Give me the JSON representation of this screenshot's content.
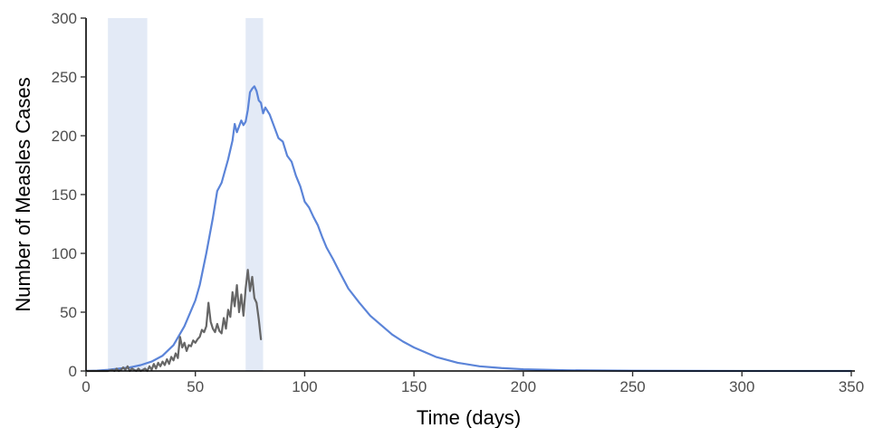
{
  "chart_data": {
    "type": "line",
    "title": "",
    "xlabel": "Time (days)",
    "ylabel": "Number of Measles Cases",
    "xlim": [
      0,
      350
    ],
    "ylim": [
      0,
      300
    ],
    "x_ticks": [
      0,
      50,
      100,
      150,
      200,
      250,
      300,
      350
    ],
    "y_ticks": [
      0,
      50,
      100,
      150,
      200,
      250,
      300
    ],
    "x_tick_labels": [
      "0",
      "50",
      "100",
      "150",
      "200",
      "250",
      "300",
      "350"
    ],
    "y_tick_labels": [
      "0",
      "50",
      "100",
      "150",
      "200",
      "250",
      "300"
    ],
    "grid": false,
    "legend": "none",
    "shaded_intervals": [
      {
        "x_start": 10,
        "x_end": 28,
        "color": "#e3eaf6"
      },
      {
        "x_start": 73,
        "x_end": 81,
        "color": "#e3eaf6"
      }
    ],
    "series": [
      {
        "color": "#5b84d8",
        "x": [
          0,
          5,
          10,
          15,
          20,
          25,
          30,
          35,
          40,
          45,
          50,
          52,
          55,
          58,
          60,
          62,
          65,
          67,
          68,
          69,
          70,
          71,
          72,
          73,
          74,
          75,
          76,
          77,
          78,
          79,
          80,
          81,
          82,
          84,
          86,
          88,
          90,
          92,
          94,
          96,
          98,
          100,
          102,
          104,
          106,
          108,
          110,
          113,
          116,
          120,
          125,
          130,
          135,
          140,
          145,
          150,
          160,
          170,
          180,
          190,
          200,
          220,
          250,
          300,
          350
        ],
        "y": [
          0,
          0.3,
          1,
          2,
          3,
          5,
          8,
          13,
          22,
          38,
          60,
          73,
          100,
          130,
          153,
          160,
          180,
          196,
          210,
          203,
          208,
          213,
          209,
          212,
          222,
          237,
          240,
          242,
          238,
          230,
          228,
          219,
          224,
          218,
          208,
          198,
          195,
          183,
          178,
          166,
          157,
          144,
          139,
          131,
          124,
          114,
          105,
          95,
          84,
          70,
          58,
          47,
          39,
          31,
          25,
          20,
          12,
          7,
          4,
          2.5,
          1.5,
          0.6,
          0.2,
          0.05,
          0
        ]
      },
      {
        "color": "#666666",
        "x": [
          0,
          10,
          12,
          13,
          14,
          15,
          16,
          17,
          18,
          19,
          20,
          21,
          22,
          23,
          24,
          25,
          26,
          27,
          28,
          29,
          30,
          31,
          32,
          33,
          34,
          35,
          36,
          37,
          38,
          39,
          40,
          41,
          42,
          43,
          44,
          45,
          46,
          47,
          48,
          49,
          50,
          51,
          52,
          53,
          54,
          55,
          56,
          57,
          58,
          59,
          60,
          61,
          62,
          63,
          64,
          65,
          66,
          67,
          68,
          69,
          70,
          71,
          72,
          73,
          74,
          75,
          76,
          77,
          78,
          79,
          80
        ],
        "y": [
          0,
          0,
          1,
          0,
          2,
          0,
          1,
          3,
          1,
          4,
          0,
          2,
          1,
          0,
          2,
          0,
          1,
          2,
          0,
          4,
          1,
          6,
          2,
          7,
          4,
          8,
          5,
          10,
          6,
          12,
          9,
          15,
          11,
          29,
          20,
          24,
          17,
          22,
          21,
          26,
          24,
          27,
          29,
          35,
          33,
          38,
          58,
          42,
          36,
          33,
          40,
          34,
          32,
          45,
          36,
          52,
          46,
          67,
          55,
          73,
          50,
          65,
          47,
          70,
          86,
          68,
          80,
          62,
          58,
          44,
          27
        ]
      }
    ]
  }
}
